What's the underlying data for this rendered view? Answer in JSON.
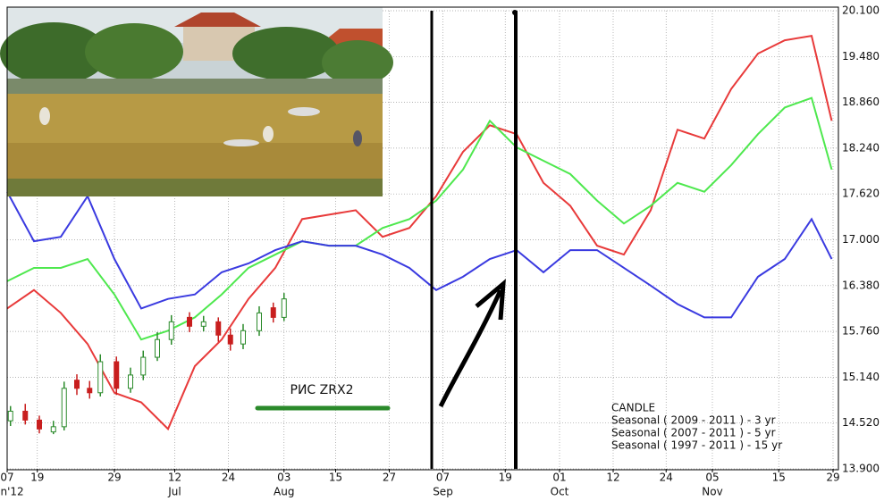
{
  "chart_data": {
    "type": "line",
    "x": [
      0,
      4,
      8,
      12,
      16,
      20,
      24,
      28,
      32,
      36,
      40,
      44,
      48,
      52,
      56,
      60,
      64,
      68,
      72,
      76,
      80,
      84,
      88,
      92,
      96,
      100,
      104,
      108,
      112,
      116,
      120,
      123
    ],
    "series": [
      {
        "name": "Seasonal ( 2009 - 2011 ) - 3 yr",
        "color": "#e83a3a",
        "values": [
          16.07,
          16.32,
          16.01,
          15.59,
          14.93,
          14.8,
          14.44,
          15.29,
          15.65,
          16.2,
          16.62,
          17.28,
          17.34,
          17.4,
          17.04,
          17.16,
          17.59,
          18.19,
          18.55,
          18.43,
          17.77,
          17.46,
          16.92,
          16.8,
          17.4,
          18.49,
          18.37,
          19.04,
          19.52,
          19.7,
          19.76,
          18.61
        ]
      },
      {
        "name": "Seasonal ( 2007 - 2011 ) - 5 yr",
        "color": "#4ee84e",
        "values": [
          16.44,
          16.62,
          16.62,
          16.74,
          16.26,
          15.65,
          15.77,
          15.95,
          16.26,
          16.62,
          16.8,
          16.98,
          16.92,
          16.92,
          17.16,
          17.28,
          17.53,
          17.95,
          18.61,
          18.25,
          18.07,
          17.89,
          17.53,
          17.22,
          17.46,
          17.77,
          17.65,
          18.01,
          18.43,
          18.79,
          18.92,
          17.95
        ]
      },
      {
        "name": "Seasonal ( 1997 - 2011 ) - 15 yr",
        "color": "#3a3ae0",
        "values": [
          17.65,
          16.98,
          17.04,
          17.59,
          16.74,
          16.07,
          16.2,
          16.26,
          16.56,
          16.68,
          16.86,
          16.98,
          16.92,
          16.92,
          16.8,
          16.62,
          16.32,
          16.5,
          16.74,
          16.86,
          16.56,
          16.86,
          16.86,
          16.62,
          16.38,
          16.13,
          15.95,
          15.95,
          16.5,
          16.74,
          17.28,
          16.74
        ]
      }
    ],
    "candles": {
      "name": "CANDLE",
      "up_color": "#2a8a2a",
      "down_color": "#c81e1e",
      "x": [
        0.5,
        2.7,
        4.8,
        6.9,
        8.5,
        10.4,
        12.3,
        13.9,
        16.3,
        18.4,
        20.3,
        22.4,
        24.5,
        27.2,
        29.3,
        31.5,
        33.3,
        35.2,
        37.6,
        39.7,
        41.3
      ],
      "open": [
        14.55,
        14.68,
        14.56,
        14.4,
        14.47,
        15.1,
        14.99,
        14.93,
        15.35,
        14.99,
        15.17,
        15.41,
        15.65,
        15.95,
        15.83,
        15.89,
        15.71,
        15.59,
        15.77,
        16.08,
        15.95
      ],
      "high": [
        14.75,
        14.78,
        14.62,
        14.55,
        15.08,
        15.18,
        15.09,
        15.45,
        15.42,
        15.27,
        15.5,
        15.75,
        15.98,
        16.02,
        15.97,
        15.95,
        15.8,
        15.86,
        16.1,
        16.15,
        16.28
      ],
      "low": [
        14.48,
        14.5,
        14.38,
        14.37,
        14.42,
        14.9,
        14.85,
        14.88,
        14.9,
        14.93,
        15.1,
        15.36,
        15.58,
        15.75,
        15.76,
        15.62,
        15.5,
        15.52,
        15.7,
        15.88,
        15.9
      ],
      "close": [
        14.68,
        14.56,
        14.44,
        14.47,
        14.99,
        14.99,
        14.93,
        15.35,
        14.99,
        15.17,
        15.41,
        15.65,
        15.89,
        15.83,
        15.89,
        15.71,
        15.59,
        15.77,
        16.01,
        15.95,
        16.2
      ]
    },
    "annotation": "РИС ZRX2",
    "xlim": [
      0,
      124
    ],
    "xticks": [
      {
        "value": 0,
        "label": "07"
      },
      {
        "value": 4.5,
        "label": "19"
      },
      {
        "value": 16,
        "label": "29"
      },
      {
        "value": 25,
        "label": "12"
      },
      {
        "value": 33,
        "label": "24"
      },
      {
        "value": 41.3,
        "label": "03"
      },
      {
        "value": 49,
        "label": "15"
      },
      {
        "value": 57,
        "label": "27"
      },
      {
        "value": 65,
        "label": "07"
      },
      {
        "value": 74.3,
        "label": "19"
      },
      {
        "value": 82.4,
        "label": "01"
      },
      {
        "value": 90.4,
        "label": "12"
      },
      {
        "value": 98.3,
        "label": "24"
      },
      {
        "value": 105.2,
        "label": "05"
      },
      {
        "value": 115.1,
        "label": "15"
      },
      {
        "value": 123.2,
        "label": "29"
      }
    ],
    "month_labels": [
      {
        "value": 0,
        "label": "Jun'12"
      },
      {
        "value": 25,
        "label": "Jul"
      },
      {
        "value": 41.3,
        "label": "Aug"
      },
      {
        "value": 65,
        "label": "Sep"
      },
      {
        "value": 82.4,
        "label": "Oct"
      },
      {
        "value": 105.2,
        "label": "Nov"
      }
    ],
    "ylim": [
      13.9,
      20.1
    ],
    "yticks": [
      {
        "value": 13.9,
        "label": "13.900"
      },
      {
        "value": 14.52,
        "label": "14.520"
      },
      {
        "value": 15.14,
        "label": "15.140"
      },
      {
        "value": 15.76,
        "label": "15.760"
      },
      {
        "value": 16.38,
        "label": "16.380"
      },
      {
        "value": 17,
        "label": "17.000"
      },
      {
        "value": 17.62,
        "label": "17.620"
      },
      {
        "value": 18.24,
        "label": "18.240"
      },
      {
        "value": 18.86,
        "label": "18.860"
      },
      {
        "value": 19.48,
        "label": "19.480"
      },
      {
        "value": 20.1,
        "label": "20.100"
      }
    ],
    "grid": true
  }
}
